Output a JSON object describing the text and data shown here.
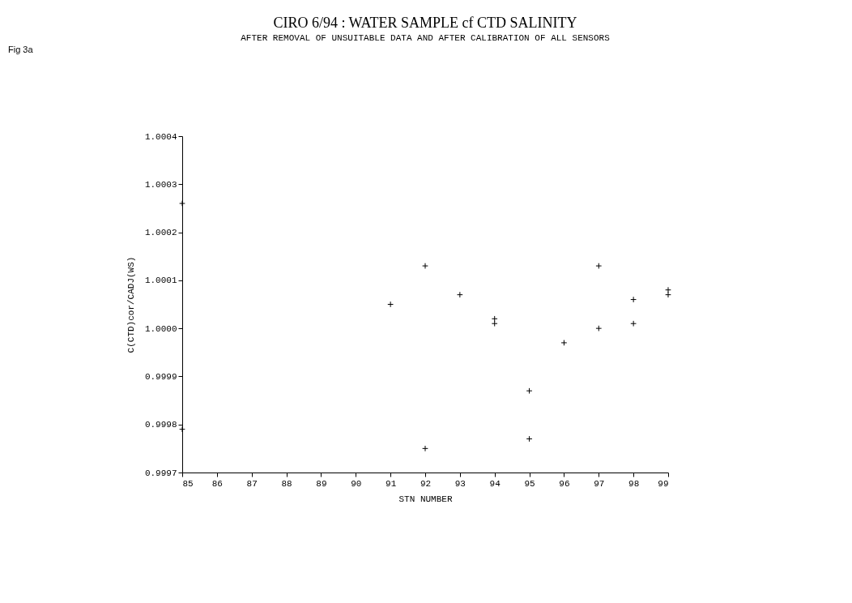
{
  "chart_data": {
    "type": "scatter",
    "title": "CIRO 6/94 :  WATER SAMPLE cf CTD SALINITY",
    "subtitle": "AFTER REMOVAL OF UNSUITABLE DATA AND AFTER CALIBRATION OF ALL SENSORS",
    "xlabel": "STN NUMBER",
    "ylabel": "C(CTD)cor/CADJ(WS)",
    "annotations": [
      "Fig 3a"
    ],
    "x": [
      85,
      85,
      91,
      92,
      92,
      93,
      94,
      94,
      95,
      95,
      96,
      97,
      97,
      98,
      98,
      99,
      99
    ],
    "values": [
      1.00026,
      0.99979,
      1.00005,
      1.00013,
      0.99975,
      1.00007,
      1.00002,
      1.00001,
      0.99987,
      0.99977,
      0.99997,
      1.00013,
      1.0,
      1.00006,
      1.00001,
      1.00008,
      1.00007
    ],
    "color": "#000000",
    "marker": "cross",
    "xlim": [
      85,
      99
    ],
    "xticks": [
      85,
      86,
      87,
      88,
      89,
      90,
      91,
      92,
      93,
      94,
      95,
      96,
      97,
      98,
      99
    ],
    "ylim": [
      0.9997,
      1.0004
    ],
    "yticks": [
      {
        "value": 0.9997,
        "label": "0.9997"
      },
      {
        "value": 0.9998,
        "label": "0.9998"
      },
      {
        "value": 0.9999,
        "label": "0.9999"
      },
      {
        "value": 1.0,
        "label": "1.0000"
      },
      {
        "value": 1.0001,
        "label": "1.0001"
      },
      {
        "value": 1.0002,
        "label": "1.0002"
      },
      {
        "value": 1.0003,
        "label": "1.0003"
      },
      {
        "value": 1.0004,
        "label": "1.0004"
      }
    ],
    "grid": false
  }
}
